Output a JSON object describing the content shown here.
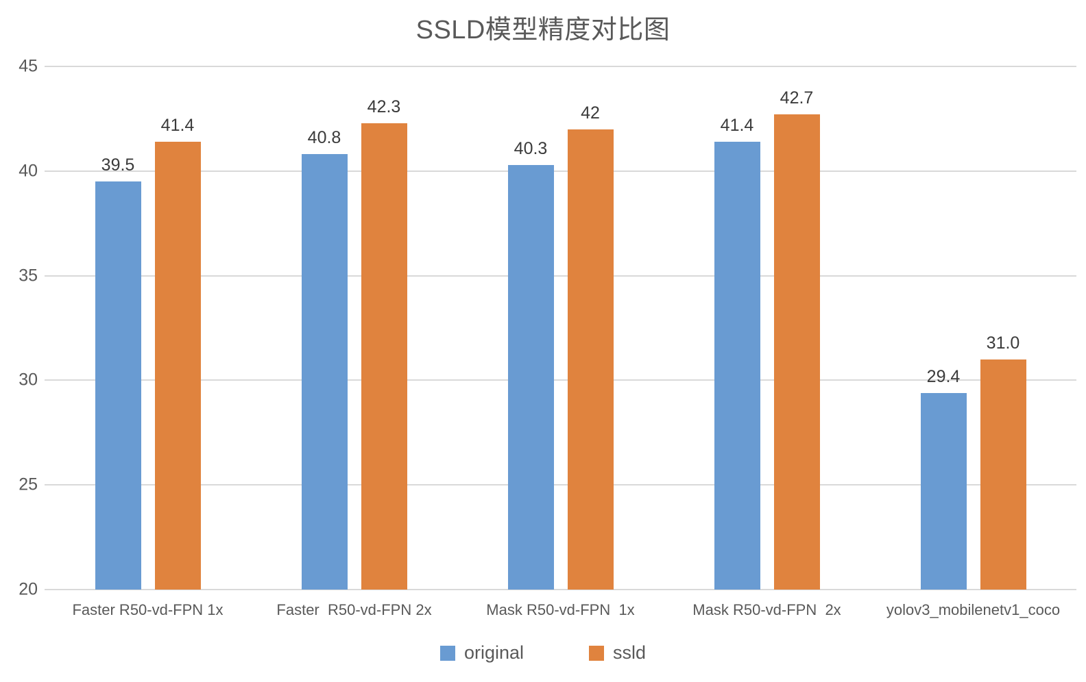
{
  "title": "SSLD模型精度对比图",
  "colors": {
    "original": "#699BD2",
    "ssld": "#E0833E",
    "grid": "#D9D9D9",
    "title_text": "#595959",
    "axis_text": "#595959",
    "value_text": "#3B3B3B"
  },
  "legend": {
    "items": [
      {
        "label": "original",
        "color": "#699BD2"
      },
      {
        "label": "ssld",
        "color": "#E0833E"
      }
    ]
  },
  "chart_data": {
    "type": "bar",
    "title": "SSLD模型精度对比图",
    "categories": [
      "Faster R50-vd-FPN 1x",
      "Faster  R50-vd-FPN 2x",
      "Mask R50-vd-FPN  1x",
      "Mask R50-vd-FPN  2x",
      "yolov3_mobilenetv1_coco"
    ],
    "series": [
      {
        "name": "original",
        "color": "#699BD2",
        "values": [
          39.5,
          40.8,
          40.3,
          41.4,
          29.4
        ],
        "labels": [
          "39.5",
          "40.8",
          "40.3",
          "41.4",
          "29.4"
        ]
      },
      {
        "name": "ssld",
        "color": "#E0833E",
        "values": [
          41.4,
          42.3,
          42.0,
          42.7,
          31.0
        ],
        "labels": [
          "41.4",
          "42.3",
          "42",
          "42.7",
          "31.0"
        ]
      }
    ],
    "xlabel": "",
    "ylabel": "",
    "ylim": [
      20,
      45
    ],
    "yticks": [
      20,
      25,
      30,
      35,
      40,
      45
    ],
    "grid": true,
    "legend_position": "bottom"
  }
}
